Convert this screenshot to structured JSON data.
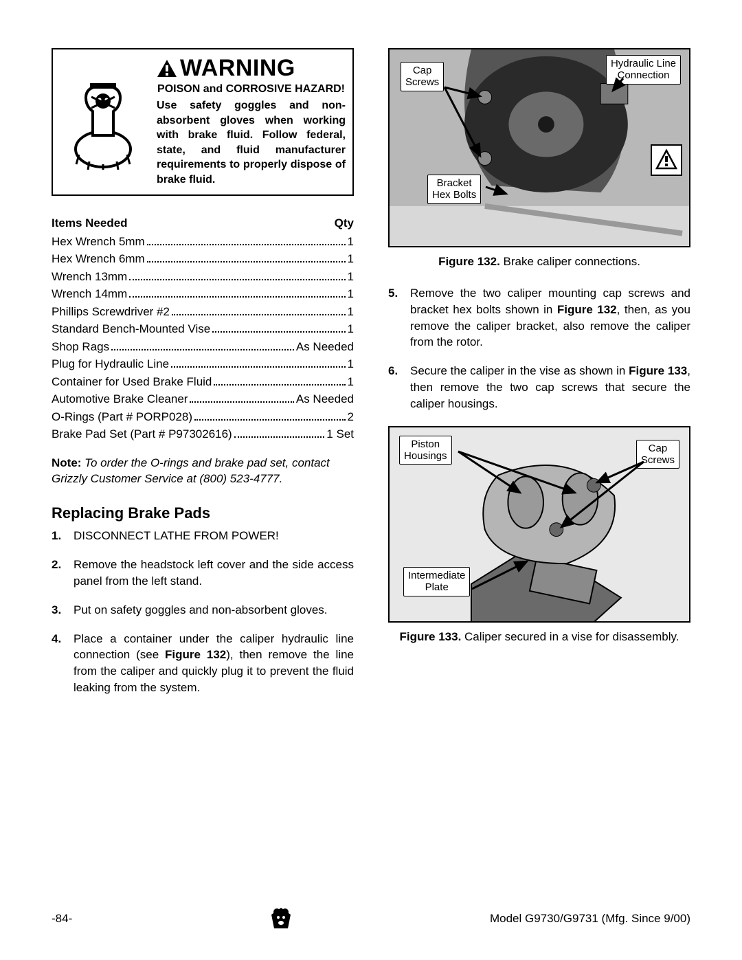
{
  "warning": {
    "title": "WARNING",
    "subtitle": "POISON and CORROSIVE HAZARD!",
    "body": "Use safety goggles and non-absorbent gloves when working with brake fluid. Follow federal, state, and fluid manufacturer requirements to properly dispose of brake fluid."
  },
  "items_header_left": "Items Needed",
  "items_header_right": "Qty",
  "items": [
    {
      "label": "Hex Wrench 5mm",
      "qty": "1"
    },
    {
      "label": "Hex Wrench 6mm",
      "qty": "1"
    },
    {
      "label": "Wrench 13mm",
      "qty": "1"
    },
    {
      "label": "Wrench 14mm",
      "qty": "1"
    },
    {
      "label": "Phillips Screwdriver #2",
      "qty": "1"
    },
    {
      "label": "Standard Bench-Mounted Vise",
      "qty": "1"
    },
    {
      "label": "Shop Rags",
      "qty": "As Needed"
    },
    {
      "label": "Plug for Hydraulic Line",
      "qty": "1"
    },
    {
      "label": "Container for Used Brake Fluid",
      "qty": "1"
    },
    {
      "label": "Automotive Brake Cleaner",
      "qty": "As Needed"
    },
    {
      "label": "O-Rings (Part # PORP028)",
      "qty": "2"
    },
    {
      "label": "Brake Pad Set (Part # P97302616)",
      "qty": "1 Set"
    }
  ],
  "note_bold": "Note:",
  "note_italic": " To order the O-rings and brake pad set, contact Grizzly Customer Service at (800) 523-4777.",
  "section_heading": "Replacing Brake Pads",
  "steps_left": [
    {
      "n": "1.",
      "t": "DISCONNECT LATHE FROM POWER!"
    },
    {
      "n": "2.",
      "t": "Remove the headstock left cover and the side access panel from the left stand."
    },
    {
      "n": "3.",
      "t": "Put on safety goggles and non-absorbent gloves."
    },
    {
      "n": "4.",
      "t": "Place a container under the caliper hydraulic line connection (see <b>Figure 132</b>), then remove the line from the caliper and quickly plug it to prevent the fluid leaking from the system."
    }
  ],
  "steps_right": [
    {
      "n": "5.",
      "t": "Remove the two caliper mounting cap screws and bracket hex bolts shown in <b>Figure 132</b>, then, as you remove the caliper bracket, also remove the caliper from the rotor."
    },
    {
      "n": "6.",
      "t": "Secure the caliper in the vise as shown in <b>Figure 133</b>, then remove the two cap screws that secure the caliper housings."
    }
  ],
  "fig132": {
    "caption_bold": "Figure 132.",
    "caption_rest": " Brake caliper connections.",
    "callouts": {
      "cap_screws": "Cap\nScrews",
      "hydraulic": "Hydraulic Line\nConnection",
      "bracket": "Bracket\nHex Bolts"
    }
  },
  "fig133": {
    "caption_bold": "Figure 133.",
    "caption_rest": " Caliper secured in a vise for disassembly.",
    "callouts": {
      "piston": "Piston\nHousings",
      "cap_screws": "Cap\nScrews",
      "intermediate": "Intermediate\nPlate"
    }
  },
  "footer": {
    "page": "-84-",
    "model": "Model G9730/G9731 (Mfg. Since 9/00)"
  },
  "colors": {
    "text": "#000000",
    "bg": "#ffffff",
    "fig_bg": "#bfbfbf"
  }
}
